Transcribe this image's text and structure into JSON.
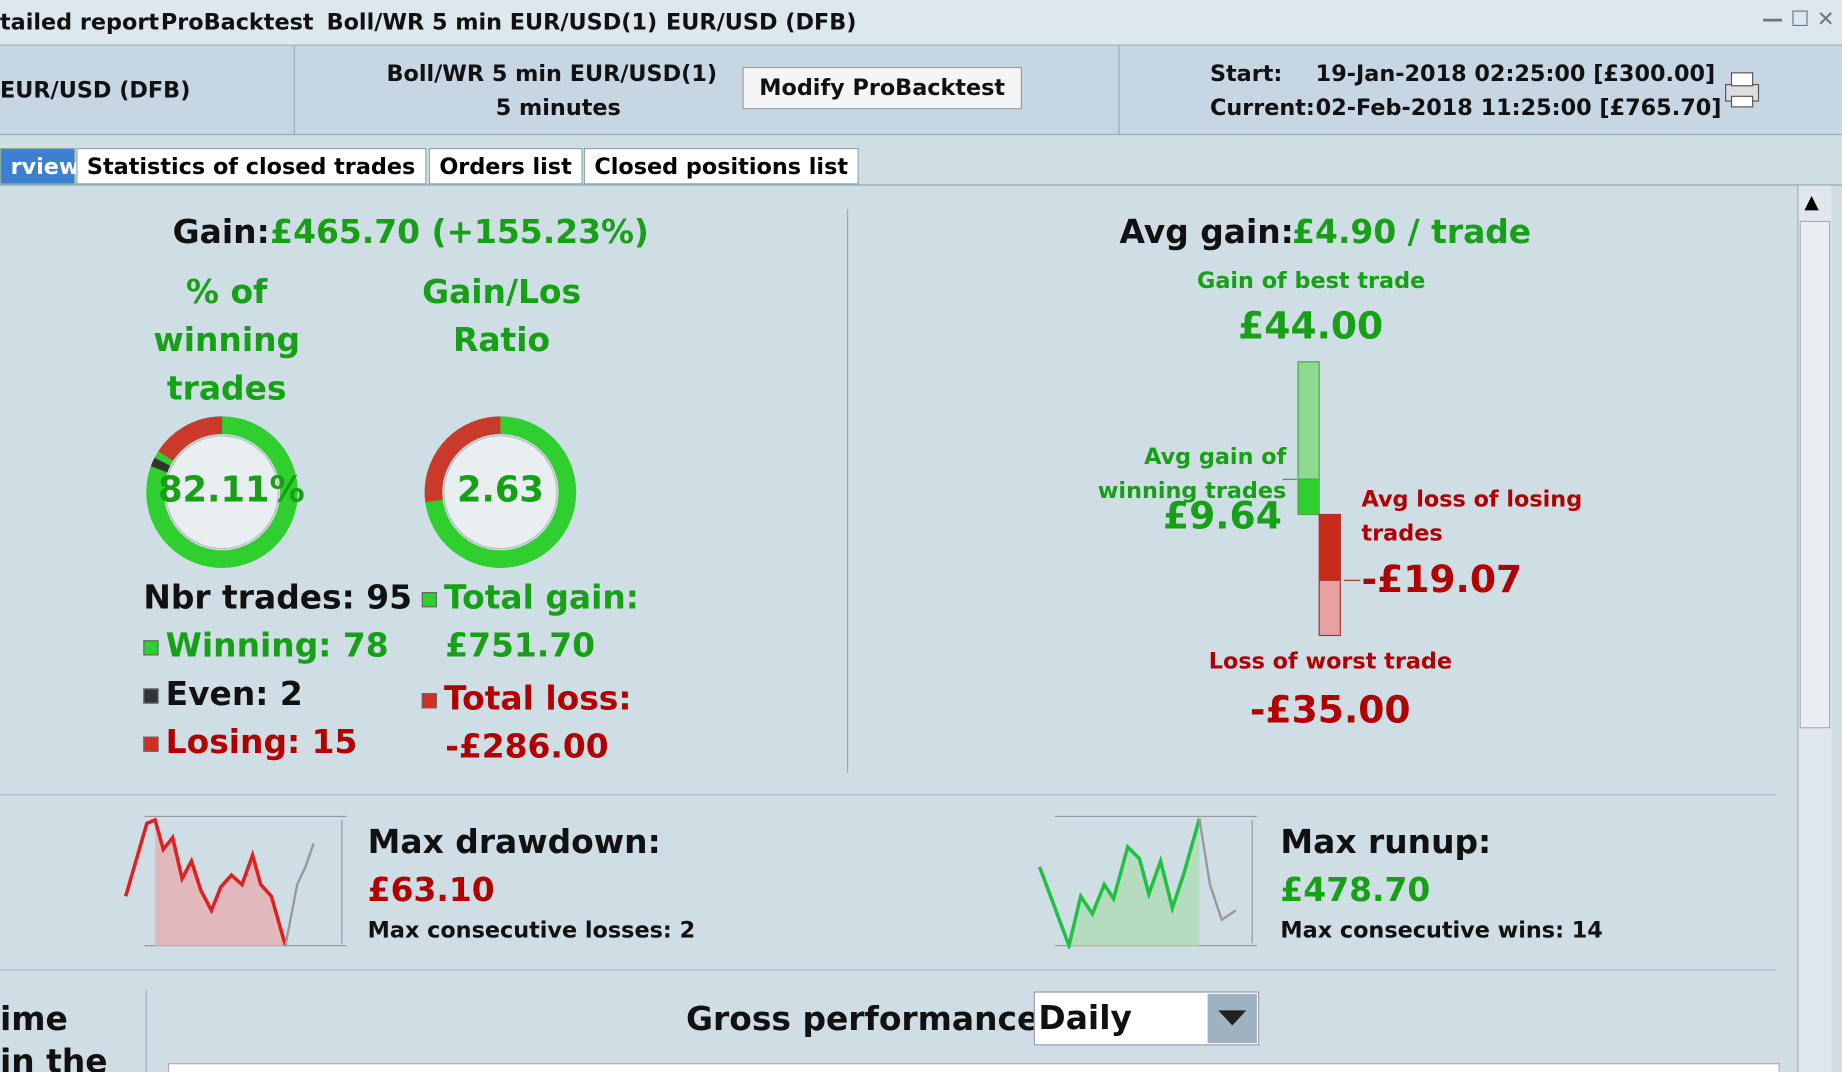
{
  "window": {
    "title_parts": [
      "tailed report",
      "ProBacktest",
      "Boll/WR 5 min EUR/USD(1)",
      "EUR/USD (DFB)"
    ]
  },
  "header": {
    "instrument": "EUR/USD (DFB)",
    "system": "Boll/WR 5 min EUR/USD(1)",
    "timeframe": "5 minutes",
    "button": "Modify ProBacktest",
    "start_label": "Start:",
    "start_value": "19-Jan-2018 02:25:00 [£300.00]",
    "current_label": "Current:",
    "current_value": "02-Feb-2018 11:25:00 [£765.70]"
  },
  "tabs": [
    "rview",
    "Statistics of closed trades",
    "Orders list",
    "Closed positions list"
  ],
  "summary": {
    "gain_label": "Gain:",
    "gain_value": "£465.70 (+155.23%)",
    "win_pct_title": "% of winning trades",
    "win_pct": "82.11%",
    "ratio_title": "Gain/Los Ratio",
    "ratio": "2.63",
    "nbr_trades": "Nbr trades: 95",
    "winning": "Winning: 78",
    "even": "Even: 2",
    "losing": "Losing: 15",
    "total_gain_label": "Total gain:",
    "total_gain": "£751.70",
    "total_loss_label": "Total loss:",
    "total_loss": "-£286.00"
  },
  "trades": {
    "avg_gain_label": "Avg gain:",
    "avg_gain_value": "£4.90 / trade",
    "best_label": "Gain of best trade",
    "best": "£44.00",
    "avg_win_label": "Avg gain of winning trades",
    "avg_win": "£9.64",
    "avg_loss_label": "Avg loss of losing trades",
    "avg_loss": "-£19.07",
    "worst_label": "Loss of worst trade",
    "worst": "-£35.00"
  },
  "drawdown": {
    "label": "Max drawdown:",
    "value": "£63.10",
    "consecutive": "Max consecutive losses: 2"
  },
  "runup": {
    "label": "Max runup:",
    "value": "£478.70",
    "consecutive": "Max consecutive wins: 14"
  },
  "bottom": {
    "left": "ime in the",
    "gross": "Gross performance",
    "select": "Daily"
  }
}
